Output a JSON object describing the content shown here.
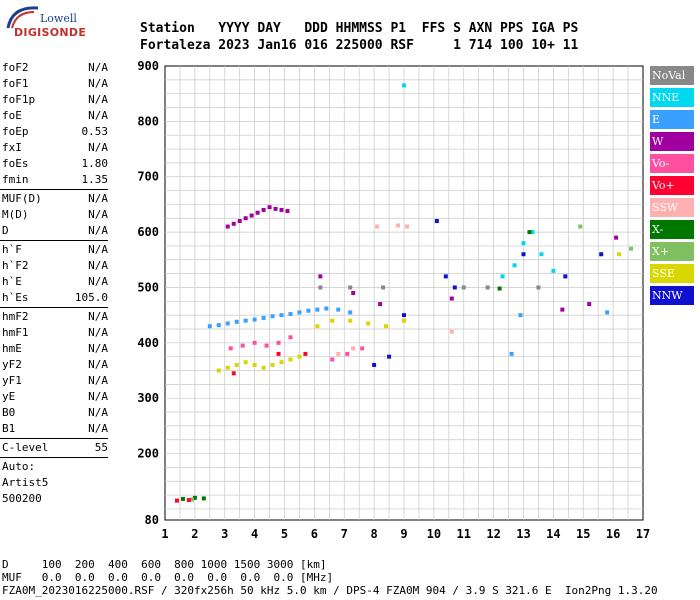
{
  "logo": {
    "line1": "Lowell",
    "line2": "DIGISONDE"
  },
  "header": {
    "line1": "Station   YYYY DAY   DDD HHMMSS P1  FFS S AXN PPS IGA PS",
    "line2": "Fortaleza 2023 Jan16 016 225000 RSF     1 714 100 10+ 11"
  },
  "params": {
    "group1": [
      {
        "name": "foF2",
        "value": "N/A"
      },
      {
        "name": "foF1",
        "value": "N/A"
      },
      {
        "name": "foF1p",
        "value": "N/A"
      },
      {
        "name": "foE",
        "value": "N/A"
      },
      {
        "name": "foEp",
        "value": "0.53"
      },
      {
        "name": "fxI",
        "value": "N/A"
      },
      {
        "name": "foEs",
        "value": "1.80"
      },
      {
        "name": "fmin",
        "value": "1.35"
      }
    ],
    "group2": [
      {
        "name": "MUF(D)",
        "value": "N/A"
      },
      {
        "name": "M(D)",
        "value": "N/A"
      },
      {
        "name": "D",
        "value": "N/A"
      }
    ],
    "group3": [
      {
        "name": "h`F",
        "value": "N/A"
      },
      {
        "name": "h`F2",
        "value": "N/A"
      },
      {
        "name": "h`E",
        "value": "N/A"
      },
      {
        "name": "h`Es",
        "value": "105.0"
      }
    ],
    "group4": [
      {
        "name": "hmF2",
        "value": "N/A"
      },
      {
        "name": "hmF1",
        "value": "N/A"
      },
      {
        "name": "hmE",
        "value": "N/A"
      },
      {
        "name": "yF2",
        "value": "N/A"
      },
      {
        "name": "yF1",
        "value": "N/A"
      },
      {
        "name": "yE",
        "value": "N/A"
      },
      {
        "name": "B0",
        "value": "N/A"
      },
      {
        "name": "B1",
        "value": "N/A"
      }
    ],
    "clevel": {
      "name": "C-level",
      "value": "55"
    },
    "auto": [
      "Auto:",
      "Artist5",
      "500200"
    ]
  },
  "legend": [
    {
      "label": "NoVal",
      "color": "#888888"
    },
    {
      "label": "NNE",
      "color": "#00d8f0"
    },
    {
      "label": "E",
      "color": "#3aa0ff"
    },
    {
      "label": "W",
      "color": "#a000a0"
    },
    {
      "label": "Vo-",
      "color": "#ff50a0"
    },
    {
      "label": "Vo+",
      "color": "#ff0030"
    },
    {
      "label": "SSW",
      "color": "#ffb0b0"
    },
    {
      "label": "X-",
      "color": "#007800"
    },
    {
      "label": "X+",
      "color": "#80c060"
    },
    {
      "label": "SSE",
      "color": "#d8d800"
    },
    {
      "label": "NNW",
      "color": "#1010d0"
    }
  ],
  "footer": {
    "line1": "D     100  200  400  600  800 1000 1500 3000 [km]",
    "line2": "MUF   0.0  0.0  0.0  0.0  0.0  0.0  0.0  0.0 [MHz]",
    "line3": "FZA0M_2023016225000.RSF / 320fx256h 50 kHz 5.0 km / DPS-4 FZA0M 904 / 3.9 S 321.6 E  Ion2Png 1.3.20"
  },
  "chart_data": {
    "type": "scatter",
    "title": "",
    "xlabel": "",
    "ylabel": "",
    "xlim": [
      1,
      17
    ],
    "ylim": [
      80,
      900
    ],
    "x_ticks": [
      1,
      2,
      3,
      4,
      5,
      6,
      7,
      8,
      9,
      10,
      11,
      12,
      13,
      14,
      15,
      16,
      17
    ],
    "y_ticks": [
      80,
      200,
      300,
      400,
      500,
      600,
      700,
      800,
      900
    ],
    "grid": true,
    "series": [
      {
        "name": "W",
        "color": "#a000a0",
        "points": [
          [
            3.1,
            610
          ],
          [
            3.3,
            615
          ],
          [
            3.5,
            620
          ],
          [
            3.7,
            625
          ],
          [
            3.9,
            630
          ],
          [
            4.1,
            635
          ],
          [
            4.3,
            640
          ],
          [
            4.5,
            645
          ],
          [
            4.7,
            642
          ],
          [
            4.9,
            640
          ],
          [
            5.1,
            638
          ],
          [
            6.2,
            520
          ],
          [
            7.3,
            490
          ],
          [
            8.2,
            470
          ],
          [
            10.6,
            480
          ],
          [
            14.3,
            460
          ],
          [
            15.2,
            470
          ],
          [
            16.1,
            590
          ]
        ]
      },
      {
        "name": "E",
        "color": "#3aa0ff",
        "points": [
          [
            2.5,
            430
          ],
          [
            2.8,
            432
          ],
          [
            3.1,
            435
          ],
          [
            3.4,
            438
          ],
          [
            3.7,
            440
          ],
          [
            4.0,
            442
          ],
          [
            4.3,
            445
          ],
          [
            4.6,
            448
          ],
          [
            4.9,
            450
          ],
          [
            5.2,
            452
          ],
          [
            5.5,
            455
          ],
          [
            5.8,
            458
          ],
          [
            6.1,
            460
          ],
          [
            6.4,
            462
          ],
          [
            6.8,
            460
          ],
          [
            7.2,
            455
          ],
          [
            12.6,
            380
          ],
          [
            12.9,
            450
          ],
          [
            15.8,
            455
          ]
        ]
      },
      {
        "name": "NNE",
        "color": "#00d8f0",
        "points": [
          [
            9.0,
            865
          ],
          [
            12.3,
            520
          ],
          [
            12.7,
            540
          ],
          [
            13.0,
            580
          ],
          [
            13.3,
            600
          ],
          [
            13.6,
            560
          ],
          [
            14.0,
            530
          ]
        ]
      },
      {
        "name": "SSE",
        "color": "#d8d800",
        "points": [
          [
            2.8,
            350
          ],
          [
            3.1,
            355
          ],
          [
            3.4,
            360
          ],
          [
            3.7,
            365
          ],
          [
            4.0,
            360
          ],
          [
            4.3,
            355
          ],
          [
            4.6,
            360
          ],
          [
            4.9,
            365
          ],
          [
            5.2,
            370
          ],
          [
            5.5,
            375
          ],
          [
            6.1,
            430
          ],
          [
            6.6,
            440
          ],
          [
            7.2,
            440
          ],
          [
            7.8,
            435
          ],
          [
            8.4,
            430
          ],
          [
            9.0,
            440
          ],
          [
            16.2,
            560
          ]
        ]
      },
      {
        "name": "Vo-",
        "color": "#ff50a0",
        "points": [
          [
            3.2,
            390
          ],
          [
            3.6,
            395
          ],
          [
            4.0,
            400
          ],
          [
            4.4,
            395
          ],
          [
            4.8,
            400
          ],
          [
            5.2,
            410
          ],
          [
            6.6,
            370
          ],
          [
            7.1,
            380
          ],
          [
            7.6,
            390
          ]
        ]
      },
      {
        "name": "SSW",
        "color": "#ffb0b0",
        "points": [
          [
            6.8,
            380
          ],
          [
            7.3,
            390
          ],
          [
            8.1,
            610
          ],
          [
            8.8,
            612
          ],
          [
            9.1,
            610
          ],
          [
            10.6,
            420
          ]
        ]
      },
      {
        "name": "NNW",
        "color": "#1010d0",
        "points": [
          [
            8.0,
            360
          ],
          [
            8.5,
            375
          ],
          [
            9.0,
            450
          ],
          [
            10.1,
            620
          ],
          [
            10.4,
            520
          ],
          [
            10.7,
            500
          ],
          [
            13.0,
            560
          ],
          [
            14.4,
            520
          ],
          [
            15.6,
            560
          ]
        ]
      },
      {
        "name": "X-",
        "color": "#007800",
        "points": [
          [
            1.6,
            118
          ],
          [
            2.0,
            120
          ],
          [
            2.3,
            119
          ],
          [
            12.2,
            498
          ],
          [
            13.2,
            600
          ]
        ]
      },
      {
        "name": "X+",
        "color": "#80c060",
        "points": [
          [
            1.9,
            117
          ],
          [
            14.9,
            610
          ],
          [
            16.6,
            570
          ]
        ]
      },
      {
        "name": "Vo+",
        "color": "#ff0030",
        "points": [
          [
            1.4,
            115
          ],
          [
            1.8,
            116
          ],
          [
            3.3,
            345
          ],
          [
            4.8,
            380
          ],
          [
            5.7,
            380
          ]
        ]
      },
      {
        "name": "NoVal",
        "color": "#888888",
        "points": [
          [
            6.2,
            500
          ],
          [
            7.2,
            500
          ],
          [
            8.3,
            500
          ],
          [
            11.0,
            500
          ],
          [
            11.8,
            500
          ],
          [
            13.5,
            500
          ]
        ]
      }
    ]
  }
}
